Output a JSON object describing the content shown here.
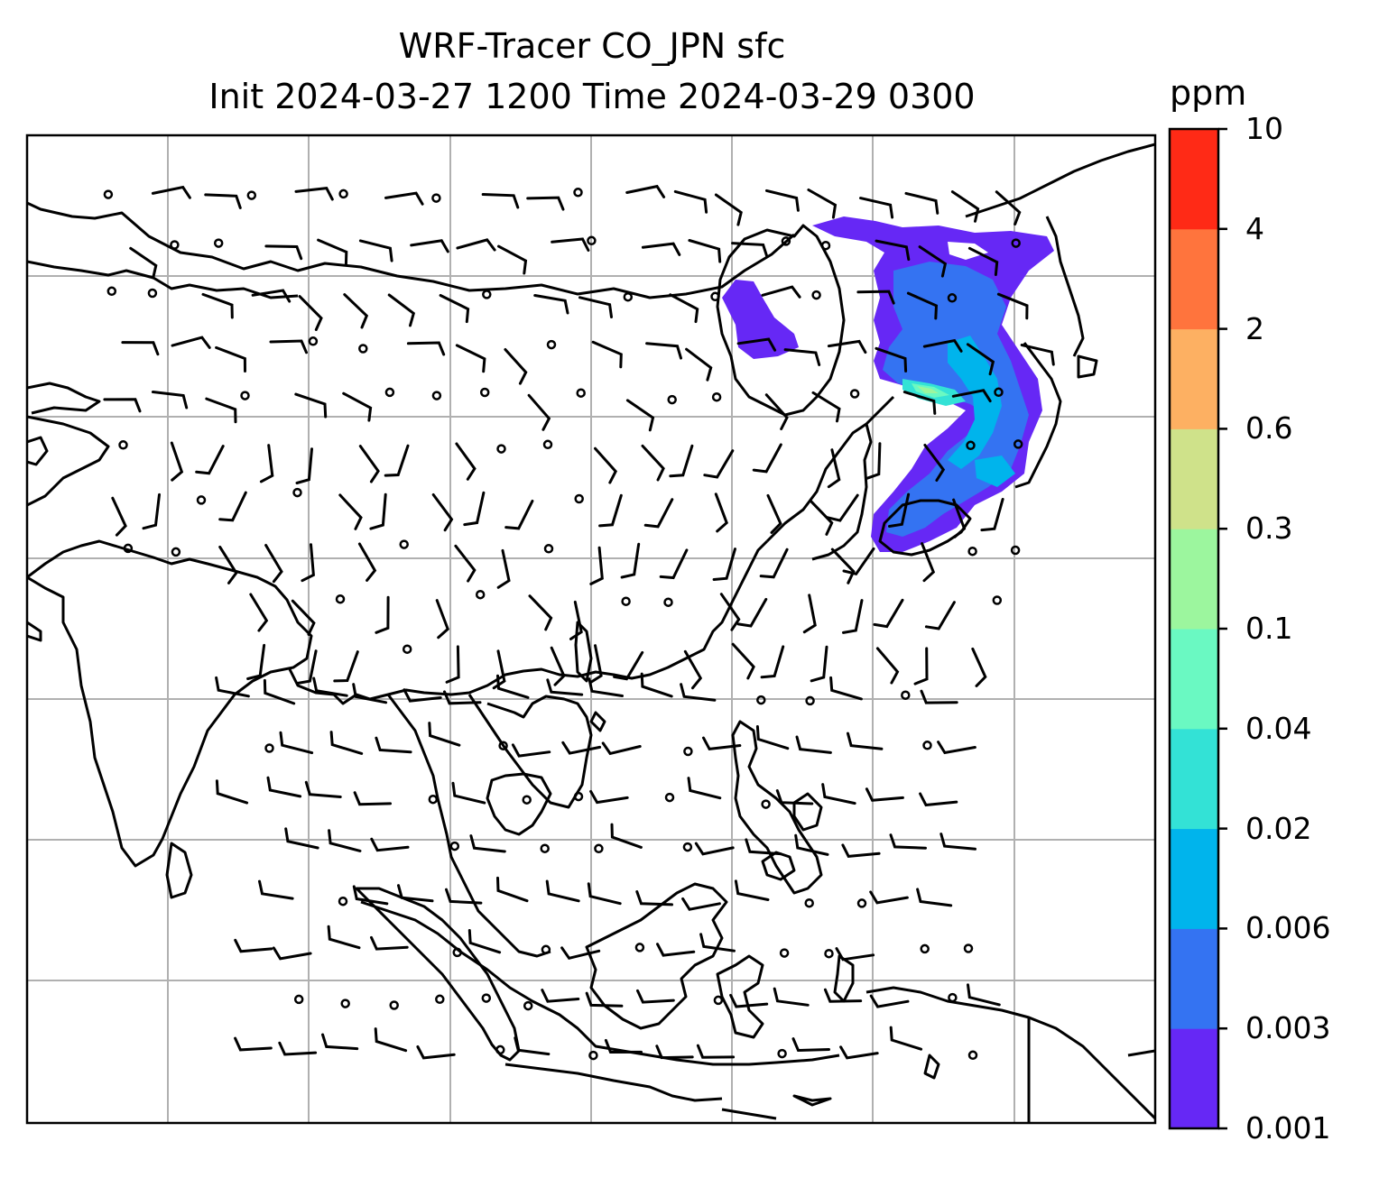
{
  "title": {
    "line1": "WRF-Tracer CO_JPN sfc",
    "line2": "Init 2024-03-27 1200 Time 2024-03-29 0300"
  },
  "colorbar": {
    "unit": "ppm",
    "levels": [
      "0.001",
      "0.003",
      "0.006",
      "0.02",
      "0.04",
      "0.1",
      "0.3",
      "0.6",
      "2",
      "4",
      "10"
    ],
    "colors": [
      "#6628f5",
      "#3473f2",
      "#00b4ec",
      "#33e2d6",
      "#6af9c2",
      "#9cf69e",
      "#cfe28a",
      "#fdb062",
      "#ff743d",
      "#ff2a16"
    ]
  },
  "map": {
    "field": "CO_JPN tracer concentration",
    "overlay": "wind barbs",
    "gridlines": true,
    "colors": {
      "land_outline": "#000000",
      "grid": "#b0b0b0",
      "barb": "#000000"
    }
  }
}
